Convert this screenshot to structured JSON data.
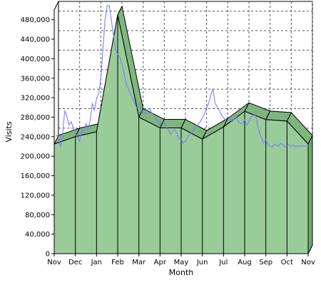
{
  "chart_data": {
    "type": "area",
    "xlabel": "Month",
    "ylabel": "Visits",
    "ylim": [
      0,
      500000
    ],
    "y_ticks": [
      0,
      40000,
      80000,
      120000,
      160000,
      200000,
      240000,
      280000,
      320000,
      360000,
      400000,
      440000,
      480000
    ],
    "y_tick_labels": [
      "0",
      "40,000",
      "80,000",
      "120,000",
      "160,000",
      "200,000",
      "240,000",
      "280,000",
      "320,000",
      "360,000",
      "400,000",
      "440,000",
      "480,000"
    ],
    "categories": [
      "Nov",
      "Dec",
      "Jan",
      "Feb",
      "Mar",
      "Apr",
      "May",
      "Jun",
      "Jul",
      "Aug",
      "Sep",
      "Oct",
      "Nov"
    ],
    "series": [
      {
        "type": "area",
        "values": [
          225000,
          240000,
          250000,
          490000,
          280000,
          258000,
          258000,
          235000,
          260000,
          292000,
          275000,
          272000,
          225000
        ],
        "color": "#99cc99"
      },
      {
        "type": "line",
        "color": "#7a7aff",
        "x": [
          0.0,
          0.1,
          0.2,
          0.3,
          0.4,
          0.5,
          0.6,
          0.7,
          0.8,
          0.9,
          1.0,
          1.1,
          1.2,
          1.3,
          1.4,
          1.5,
          1.6,
          1.7,
          1.8,
          1.9,
          2.0,
          2.1,
          2.2,
          2.3,
          2.4,
          2.5,
          2.6,
          2.7,
          2.8,
          2.9,
          3.0,
          3.1,
          3.2,
          3.3,
          3.4,
          3.5,
          3.6,
          3.7,
          3.8,
          3.9,
          4.0,
          4.1,
          4.2,
          4.3,
          4.4,
          4.5,
          4.6,
          4.7,
          4.8,
          4.9,
          5.0,
          5.1,
          5.2,
          5.3,
          5.4,
          5.5,
          5.6,
          5.7,
          5.8,
          5.9,
          6.0,
          6.1,
          6.2,
          6.3,
          6.4,
          6.5,
          6.6,
          6.7,
          6.8,
          6.9,
          7.0,
          7.1,
          7.2,
          7.3,
          7.4,
          7.5,
          7.6,
          7.7,
          7.8,
          7.9,
          8.0,
          8.1,
          8.2,
          8.3,
          8.4,
          8.5,
          8.6,
          8.7,
          8.8,
          8.9,
          9.0,
          9.1,
          9.2,
          9.3,
          9.4,
          9.5,
          9.6,
          9.7,
          9.8,
          9.9,
          10.0,
          10.1,
          10.2,
          10.3,
          10.4,
          10.5,
          10.6,
          10.7,
          10.8,
          10.9,
          11.0,
          11.1,
          11.2,
          11.3,
          11.4,
          11.5,
          11.6,
          11.7,
          11.8,
          11.9,
          12.0
        ],
        "values": [
          235000,
          228000,
          210000,
          240000,
          285000,
          272000,
          255000,
          262000,
          250000,
          238000,
          230000,
          222000,
          245000,
          238000,
          258000,
          248000,
          265000,
          300000,
          285000,
          310000,
          320000,
          350000,
          410000,
          470000,
          500000,
          500000,
          470000,
          440000,
          410000,
          400000,
          395000,
          380000,
          360000,
          340000,
          330000,
          320000,
          310000,
          300000,
          290000,
          295000,
          285000,
          282000,
          278000,
          286000,
          290000,
          280000,
          276000,
          268000,
          262000,
          256000,
          262000,
          258000,
          250000,
          244000,
          236000,
          242000,
          246000,
          238000,
          228000,
          225000,
          218000,
          222000,
          230000,
          236000,
          240000,
          246000,
          252000,
          256000,
          262000,
          270000,
          278000,
          290000,
          300000,
          318000,
          330000,
          300000,
          292000,
          285000,
          276000,
          270000,
          266000,
          272000,
          268000,
          262000,
          268000,
          272000,
          262000,
          258000,
          260000,
          266000,
          255000,
          262000,
          272000,
          275000,
          278000,
          255000,
          240000,
          228000,
          218000,
          225000,
          215000,
          212000,
          210000,
          216000,
          214000,
          212000,
          218000,
          215000,
          210000,
          212000,
          215000,
          212000,
          214000,
          210000,
          212000,
          212000,
          212000,
          212000,
          212000,
          212000,
          212000
        ]
      }
    ]
  }
}
